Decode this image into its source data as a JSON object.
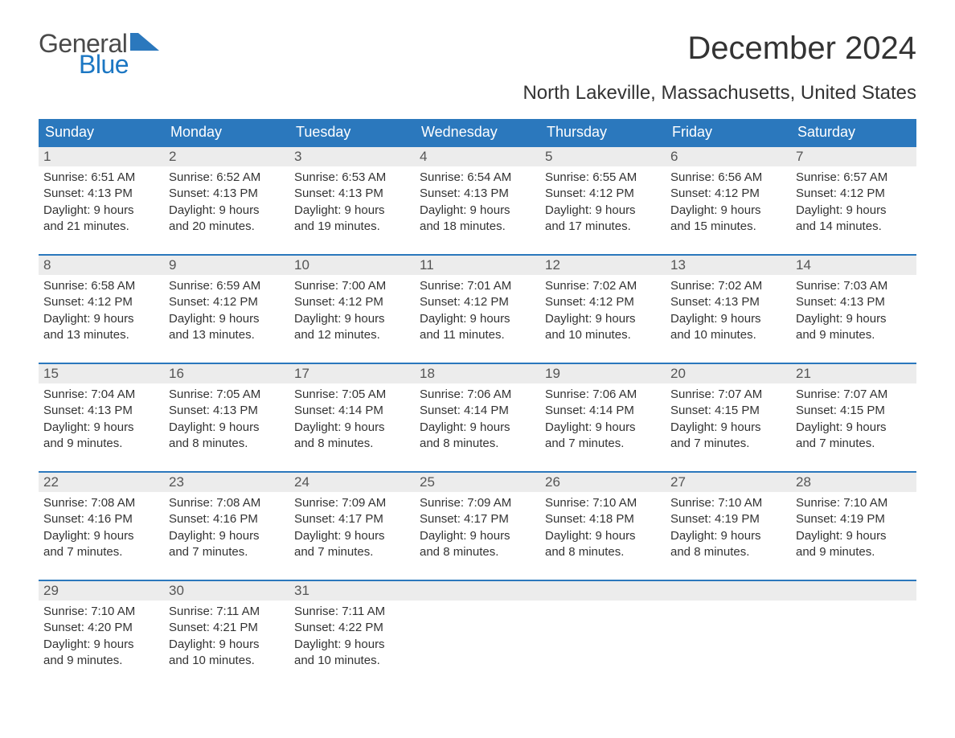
{
  "brand": {
    "word1": "General",
    "word2": "Blue",
    "color1": "#4a4a4a",
    "color2": "#1c77c3",
    "flag_color": "#2b78bd"
  },
  "title": "December 2024",
  "subtitle": "North Lakeville, Massachusetts, United States",
  "colors": {
    "header_bg": "#2b78bd",
    "header_text": "#ffffff",
    "daynum_bg": "#ececec",
    "week_border": "#2b78bd",
    "body_text": "#333333",
    "background": "#ffffff"
  },
  "typography": {
    "title_fontsize": 40,
    "subtitle_fontsize": 24,
    "dayheader_fontsize": 18,
    "daynum_fontsize": 17,
    "content_fontsize": 15
  },
  "day_headers": [
    "Sunday",
    "Monday",
    "Tuesday",
    "Wednesday",
    "Thursday",
    "Friday",
    "Saturday"
  ],
  "weeks": [
    [
      {
        "num": "1",
        "sunrise": "Sunrise: 6:51 AM",
        "sunset": "Sunset: 4:13 PM",
        "d1": "Daylight: 9 hours",
        "d2": "and 21 minutes."
      },
      {
        "num": "2",
        "sunrise": "Sunrise: 6:52 AM",
        "sunset": "Sunset: 4:13 PM",
        "d1": "Daylight: 9 hours",
        "d2": "and 20 minutes."
      },
      {
        "num": "3",
        "sunrise": "Sunrise: 6:53 AM",
        "sunset": "Sunset: 4:13 PM",
        "d1": "Daylight: 9 hours",
        "d2": "and 19 minutes."
      },
      {
        "num": "4",
        "sunrise": "Sunrise: 6:54 AM",
        "sunset": "Sunset: 4:13 PM",
        "d1": "Daylight: 9 hours",
        "d2": "and 18 minutes."
      },
      {
        "num": "5",
        "sunrise": "Sunrise: 6:55 AM",
        "sunset": "Sunset: 4:12 PM",
        "d1": "Daylight: 9 hours",
        "d2": "and 17 minutes."
      },
      {
        "num": "6",
        "sunrise": "Sunrise: 6:56 AM",
        "sunset": "Sunset: 4:12 PM",
        "d1": "Daylight: 9 hours",
        "d2": "and 15 minutes."
      },
      {
        "num": "7",
        "sunrise": "Sunrise: 6:57 AM",
        "sunset": "Sunset: 4:12 PM",
        "d1": "Daylight: 9 hours",
        "d2": "and 14 minutes."
      }
    ],
    [
      {
        "num": "8",
        "sunrise": "Sunrise: 6:58 AM",
        "sunset": "Sunset: 4:12 PM",
        "d1": "Daylight: 9 hours",
        "d2": "and 13 minutes."
      },
      {
        "num": "9",
        "sunrise": "Sunrise: 6:59 AM",
        "sunset": "Sunset: 4:12 PM",
        "d1": "Daylight: 9 hours",
        "d2": "and 13 minutes."
      },
      {
        "num": "10",
        "sunrise": "Sunrise: 7:00 AM",
        "sunset": "Sunset: 4:12 PM",
        "d1": "Daylight: 9 hours",
        "d2": "and 12 minutes."
      },
      {
        "num": "11",
        "sunrise": "Sunrise: 7:01 AM",
        "sunset": "Sunset: 4:12 PM",
        "d1": "Daylight: 9 hours",
        "d2": "and 11 minutes."
      },
      {
        "num": "12",
        "sunrise": "Sunrise: 7:02 AM",
        "sunset": "Sunset: 4:12 PM",
        "d1": "Daylight: 9 hours",
        "d2": "and 10 minutes."
      },
      {
        "num": "13",
        "sunrise": "Sunrise: 7:02 AM",
        "sunset": "Sunset: 4:13 PM",
        "d1": "Daylight: 9 hours",
        "d2": "and 10 minutes."
      },
      {
        "num": "14",
        "sunrise": "Sunrise: 7:03 AM",
        "sunset": "Sunset: 4:13 PM",
        "d1": "Daylight: 9 hours",
        "d2": "and 9 minutes."
      }
    ],
    [
      {
        "num": "15",
        "sunrise": "Sunrise: 7:04 AM",
        "sunset": "Sunset: 4:13 PM",
        "d1": "Daylight: 9 hours",
        "d2": "and 9 minutes."
      },
      {
        "num": "16",
        "sunrise": "Sunrise: 7:05 AM",
        "sunset": "Sunset: 4:13 PM",
        "d1": "Daylight: 9 hours",
        "d2": "and 8 minutes."
      },
      {
        "num": "17",
        "sunrise": "Sunrise: 7:05 AM",
        "sunset": "Sunset: 4:14 PM",
        "d1": "Daylight: 9 hours",
        "d2": "and 8 minutes."
      },
      {
        "num": "18",
        "sunrise": "Sunrise: 7:06 AM",
        "sunset": "Sunset: 4:14 PM",
        "d1": "Daylight: 9 hours",
        "d2": "and 8 minutes."
      },
      {
        "num": "19",
        "sunrise": "Sunrise: 7:06 AM",
        "sunset": "Sunset: 4:14 PM",
        "d1": "Daylight: 9 hours",
        "d2": "and 7 minutes."
      },
      {
        "num": "20",
        "sunrise": "Sunrise: 7:07 AM",
        "sunset": "Sunset: 4:15 PM",
        "d1": "Daylight: 9 hours",
        "d2": "and 7 minutes."
      },
      {
        "num": "21",
        "sunrise": "Sunrise: 7:07 AM",
        "sunset": "Sunset: 4:15 PM",
        "d1": "Daylight: 9 hours",
        "d2": "and 7 minutes."
      }
    ],
    [
      {
        "num": "22",
        "sunrise": "Sunrise: 7:08 AM",
        "sunset": "Sunset: 4:16 PM",
        "d1": "Daylight: 9 hours",
        "d2": "and 7 minutes."
      },
      {
        "num": "23",
        "sunrise": "Sunrise: 7:08 AM",
        "sunset": "Sunset: 4:16 PM",
        "d1": "Daylight: 9 hours",
        "d2": "and 7 minutes."
      },
      {
        "num": "24",
        "sunrise": "Sunrise: 7:09 AM",
        "sunset": "Sunset: 4:17 PM",
        "d1": "Daylight: 9 hours",
        "d2": "and 7 minutes."
      },
      {
        "num": "25",
        "sunrise": "Sunrise: 7:09 AM",
        "sunset": "Sunset: 4:17 PM",
        "d1": "Daylight: 9 hours",
        "d2": "and 8 minutes."
      },
      {
        "num": "26",
        "sunrise": "Sunrise: 7:10 AM",
        "sunset": "Sunset: 4:18 PM",
        "d1": "Daylight: 9 hours",
        "d2": "and 8 minutes."
      },
      {
        "num": "27",
        "sunrise": "Sunrise: 7:10 AM",
        "sunset": "Sunset: 4:19 PM",
        "d1": "Daylight: 9 hours",
        "d2": "and 8 minutes."
      },
      {
        "num": "28",
        "sunrise": "Sunrise: 7:10 AM",
        "sunset": "Sunset: 4:19 PM",
        "d1": "Daylight: 9 hours",
        "d2": "and 9 minutes."
      }
    ],
    [
      {
        "num": "29",
        "sunrise": "Sunrise: 7:10 AM",
        "sunset": "Sunset: 4:20 PM",
        "d1": "Daylight: 9 hours",
        "d2": "and 9 minutes."
      },
      {
        "num": "30",
        "sunrise": "Sunrise: 7:11 AM",
        "sunset": "Sunset: 4:21 PM",
        "d1": "Daylight: 9 hours",
        "d2": "and 10 minutes."
      },
      {
        "num": "31",
        "sunrise": "Sunrise: 7:11 AM",
        "sunset": "Sunset: 4:22 PM",
        "d1": "Daylight: 9 hours",
        "d2": "and 10 minutes."
      },
      {
        "num": "",
        "sunrise": "",
        "sunset": "",
        "d1": "",
        "d2": ""
      },
      {
        "num": "",
        "sunrise": "",
        "sunset": "",
        "d1": "",
        "d2": ""
      },
      {
        "num": "",
        "sunrise": "",
        "sunset": "",
        "d1": "",
        "d2": ""
      },
      {
        "num": "",
        "sunrise": "",
        "sunset": "",
        "d1": "",
        "d2": ""
      }
    ]
  ]
}
